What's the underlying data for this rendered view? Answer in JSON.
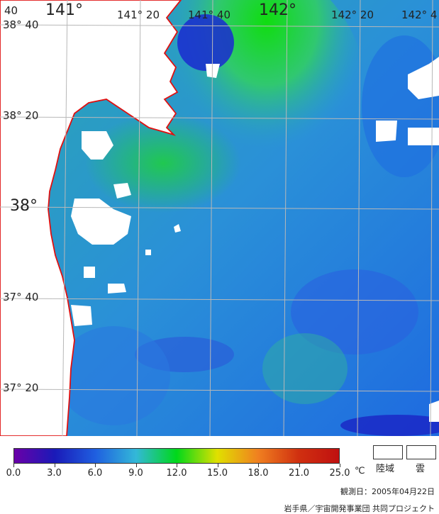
{
  "map": {
    "lat_labels": [
      "38° 40",
      "38° 20",
      "38°",
      "37° 40",
      "37° 20"
    ],
    "lon_labels": [
      "40",
      "141°",
      "141° 20",
      "141° 40",
      "142°",
      "142° 20",
      "142° 4"
    ]
  },
  "legend": {
    "ticks": [
      "0.0",
      "3.0",
      "6.0",
      "9.0",
      "12.0",
      "15.0",
      "18.0",
      "21.0",
      "25.0"
    ],
    "unit": "℃",
    "land_label": "陸域",
    "cloud_label": "雲",
    "colors": [
      "#6a00a8",
      "#1a1ab8",
      "#1f5fe0",
      "#33b8d8",
      "#00d81a",
      "#e0e000",
      "#f08020",
      "#d03010",
      "#c01010"
    ]
  },
  "observation_date": "観測日：2005年04月22日",
  "credit": "岩手県／宇宙開発事業団 共同プロジェクト"
}
